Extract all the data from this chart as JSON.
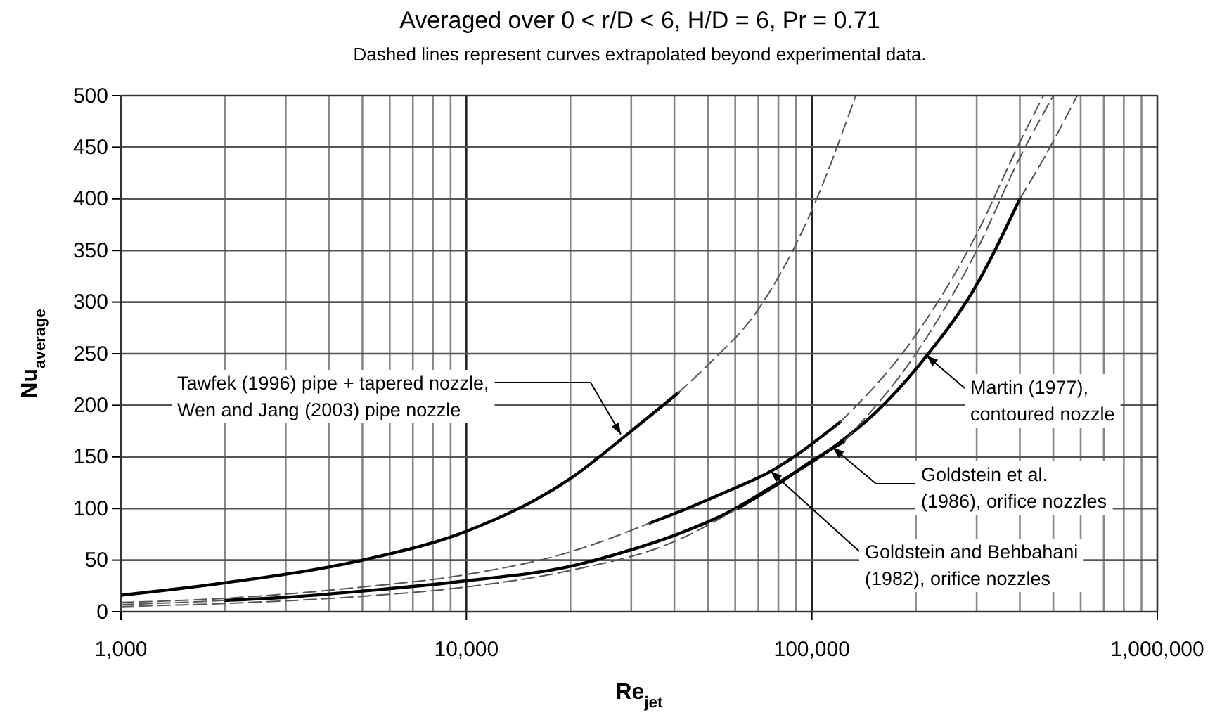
{
  "chart_data": {
    "type": "line",
    "title": "Averaged over 0 < r/D < 6, H/D = 6, Pr = 0.71",
    "subtitle": "Dashed lines represent curves extrapolated beyond experimental data.",
    "xlabel": "Re$_{jet}$",
    "ylabel": "Nu$_{average}$",
    "log": "x",
    "grid": true,
    "marker": "none",
    "xlim": [
      1000,
      1000000
    ],
    "xticks": [
      {
        "value": 1000,
        "label": "1,000"
      },
      {
        "value": 10000,
        "label": "10,000"
      },
      {
        "value": 100000,
        "label": "100,000"
      },
      {
        "value": 1000000,
        "label": "1,000,000"
      }
    ],
    "ylim": [
      0,
      500
    ],
    "yticks": [
      0,
      50,
      100,
      150,
      200,
      250,
      300,
      350,
      400,
      450,
      500
    ],
    "series": [
      {
        "color": "#000000",
        "line_style": "solid",
        "x": [
          1000,
          2000,
          5000,
          10000,
          20000,
          30000,
          41000
        ],
        "values": [
          16,
          28,
          50,
          78,
          129,
          175,
          212
        ]
      },
      {
        "color": "#555555",
        "line_style": "dashed",
        "x": [
          41000,
          50000,
          70000,
          100000,
          134000
        ],
        "values": [
          212,
          239,
          293,
          389,
          500
        ]
      },
      {
        "color": "#000000",
        "line_style": "solid",
        "x": [
          2000,
          3000,
          5000,
          10000,
          20000,
          30000,
          40000,
          56300,
          80000,
          115000,
          153000,
          215000,
          293000,
          400000
        ],
        "values": [
          11,
          14,
          20,
          30,
          44,
          60,
          74,
          95,
          125,
          159,
          193,
          248,
          311,
          400
        ]
      },
      {
        "color": "#555555",
        "line_style": "dashed",
        "x": [
          1000,
          1500,
          2000
        ],
        "values": [
          7,
          9,
          11
        ]
      },
      {
        "color": "#555555",
        "line_style": "dashed",
        "x": [
          400000,
          480000,
          586000
        ],
        "values": [
          400,
          445,
          500
        ]
      },
      {
        "color": "#000000",
        "line_style": "solid",
        "x": [
          34000,
          40000,
          56300,
          76000,
          121000
        ],
        "values": [
          86,
          95,
          116,
          136,
          184
        ]
      },
      {
        "color": "#555555",
        "line_style": "dashed",
        "x": [
          1000,
          2000,
          5000,
          10000,
          20000,
          34000
        ],
        "values": [
          9,
          13,
          24,
          36,
          58,
          86
        ]
      },
      {
        "color": "#555555",
        "line_style": "dashed",
        "x": [
          121000,
          196000,
          300000,
          400000,
          468000
        ],
        "values": [
          184,
          264,
          366,
          455,
          500
        ]
      },
      {
        "color": "#000000",
        "line_style": "solid",
        "x": [
          61000,
          80000,
          100000,
          124000
        ],
        "values": [
          100,
          124,
          146,
          165
        ]
      },
      {
        "color": "#555555",
        "line_style": "dashed",
        "x": [
          1000,
          2000,
          5000,
          10000,
          20000,
          40000,
          61000
        ],
        "values": [
          5,
          8,
          15,
          24,
          40,
          68,
          100
        ]
      },
      {
        "color": "#555555",
        "line_style": "dashed",
        "x": [
          124000,
          200000,
          300000,
          400000,
          500000
        ],
        "values": [
          165,
          250,
          350,
          440,
          500
        ]
      }
    ],
    "annotations": [
      {
        "text": "Tawfek (1996) pipe + tapered nozzle,\nWen and Jang (2003) pipe nozzle",
        "x": 28000,
        "y": 172
      },
      {
        "text": "Martin (1977),\ncontoured nozzle",
        "x": 215000,
        "y": 248
      },
      {
        "text": "Goldstein et al.\n(1986), orifice nozzles",
        "x": 115000,
        "y": 159
      },
      {
        "text": "Goldstein and Behbahani\n(1982), orifice nozzles",
        "x": 76000,
        "y": 136
      }
    ]
  }
}
